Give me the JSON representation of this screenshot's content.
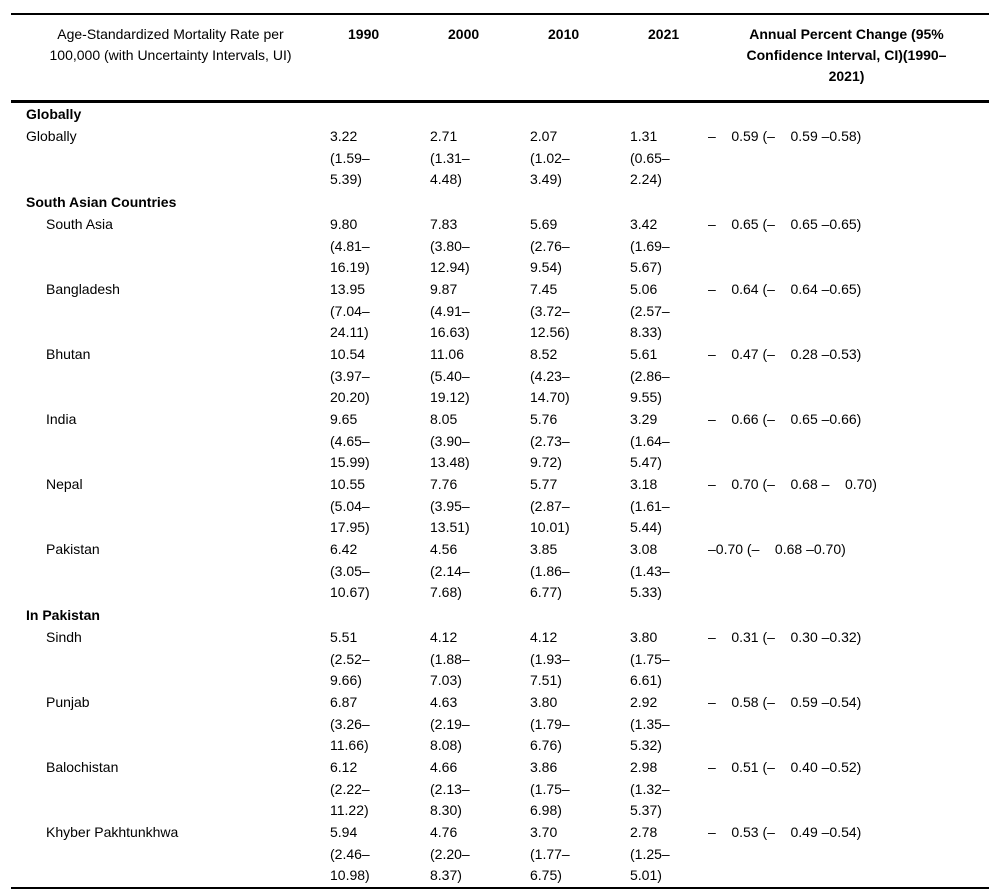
{
  "colors": {
    "background": "#ffffff",
    "text": "#000000",
    "rule": "#000000"
  },
  "table": {
    "header": {
      "col1": "Age-Standardized Mortality Rate per\n100,000 (with Uncertainty Intervals, UI)",
      "years": [
        "1990",
        "2000",
        "2010",
        "2021"
      ],
      "apc": "Annual Percent Change (95%\nConfidence Interval, CI)(1990–\n2021)"
    },
    "sections": [
      {
        "title": "Globally",
        "rows": [
          {
            "label": "Globally",
            "values": [
              "3.22\n(1.59–\n5.39)",
              "2.71\n(1.31–\n4.48)",
              "2.07\n(1.02–\n3.49)",
              "1.31\n(0.65–\n2.24)"
            ],
            "apc": "–    0.59 (–    0.59 –0.58)"
          }
        ]
      },
      {
        "title": "South Asian Countries",
        "rows": [
          {
            "label": "South Asia",
            "values": [
              "9.80\n(4.81–\n16.19)",
              "7.83\n(3.80–\n12.94)",
              "5.69\n(2.76–\n9.54)",
              "3.42\n(1.69–\n5.67)"
            ],
            "apc": "–    0.65 (–    0.65 –0.65)"
          },
          {
            "label": "Bangladesh",
            "values": [
              "13.95\n(7.04–\n24.11)",
              "9.87\n(4.91–\n16.63)",
              "7.45\n(3.72–\n12.56)",
              "5.06\n(2.57–\n8.33)"
            ],
            "apc": "–    0.64 (–    0.64 –0.65)"
          },
          {
            "label": "Bhutan",
            "values": [
              "10.54\n(3.97–\n20.20)",
              "11.06\n(5.40–\n19.12)",
              "8.52\n(4.23–\n14.70)",
              "5.61\n(2.86–\n9.55)"
            ],
            "apc": "–    0.47 (–    0.28 –0.53)"
          },
          {
            "label": "India",
            "values": [
              "9.65\n(4.65–\n15.99)",
              "8.05\n(3.90–\n13.48)",
              "5.76\n(2.73–\n9.72)",
              "3.29\n(1.64–\n5.47)"
            ],
            "apc": "–    0.66 (–    0.65 –0.66)"
          },
          {
            "label": "Nepal",
            "values": [
              "10.55\n(5.04–\n17.95)",
              "7.76\n(3.95–\n13.51)",
              "5.77\n(2.87–\n10.01)",
              "3.18\n(1.61–\n5.44)"
            ],
            "apc": "–    0.70 (–    0.68 –    0.70)"
          },
          {
            "label": "Pakistan",
            "values": [
              "6.42\n(3.05–\n10.67)",
              "4.56\n(2.14–\n7.68)",
              "3.85\n(1.86–\n6.77)",
              "3.08\n(1.43–\n5.33)"
            ],
            "apc": "–0.70 (–    0.68 –0.70)"
          }
        ]
      },
      {
        "title": "In Pakistan",
        "rows": [
          {
            "label": "Sindh",
            "values": [
              "5.51\n(2.52–\n9.66)",
              "4.12\n(1.88–\n7.03)",
              "4.12\n(1.93–\n7.51)",
              "3.80\n(1.75–\n6.61)"
            ],
            "apc": "–    0.31 (–    0.30 –0.32)"
          },
          {
            "label": "Punjab",
            "values": [
              "6.87\n(3.26–\n11.66)",
              "4.63\n(2.19–\n8.08)",
              "3.80\n(1.79–\n6.76)",
              "2.92\n(1.35–\n5.32)"
            ],
            "apc": "–    0.58 (–    0.59 –0.54)"
          },
          {
            "label": "Balochistan",
            "values": [
              "6.12\n(2.22–\n11.22)",
              "4.66\n(2.13–\n8.30)",
              "3.86\n(1.75–\n6.98)",
              "2.98\n(1.32–\n5.37)"
            ],
            "apc": "–    0.51 (–    0.40 –0.52)"
          },
          {
            "label": "Khyber Pakhtunkhwa",
            "values": [
              "5.94\n(2.46–\n10.98)",
              "4.76\n(2.20–\n8.37)",
              "3.70\n(1.77–\n6.75)",
              "2.78\n(1.25–\n5.01)"
            ],
            "apc": "–    0.53 (–    0.49 –0.54)"
          }
        ]
      }
    ]
  }
}
